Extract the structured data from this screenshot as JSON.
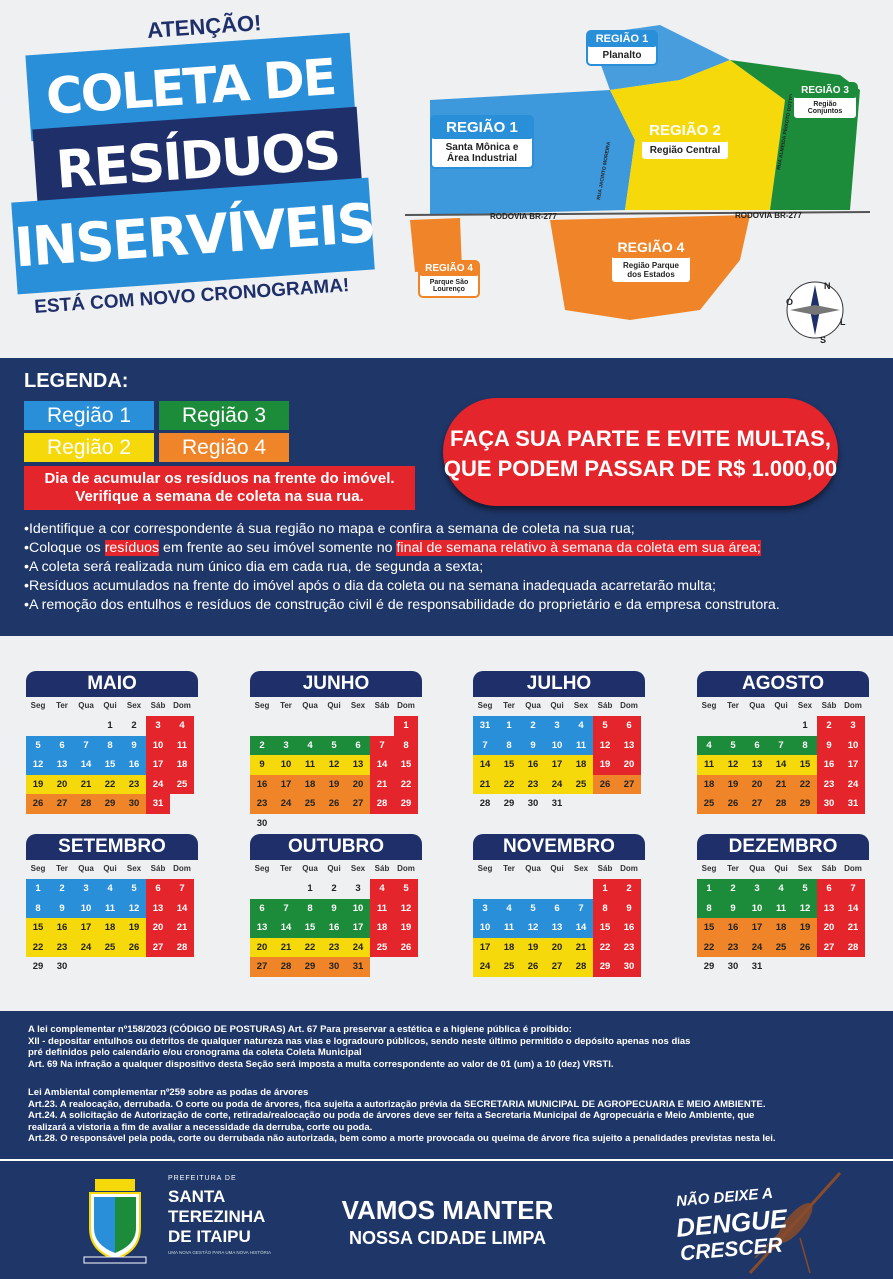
{
  "header": {
    "attention": "ATENÇÃO!",
    "title_line1": "COLETA DE",
    "title_line2": "RESÍDUOS",
    "title_line3": "INSERVÍVEIS",
    "subtitle": "ESTÁ COM NOVO CRONOGRAMA!"
  },
  "map": {
    "r1_top": {
      "title": "REGIÃO 1",
      "name": "Planalto"
    },
    "r3": {
      "title": "REGIÃO 3",
      "name": "Região Conjuntos"
    },
    "r1": {
      "title": "REGIÃO 1",
      "name": "Santa Mônica e Área Industrial"
    },
    "r2": {
      "title": "REGIÃO 2",
      "name": "Região Central"
    },
    "r4a": {
      "title": "REGIÃO 4",
      "name": "Região Parque dos Estados"
    },
    "r4b": {
      "title": "REGIÃO 4",
      "name": "Parque São Lourenço"
    },
    "road": "RODOVIA BR-277",
    "road2": "RODOVIA BR-277",
    "street1": "RUA JACINTO MOREIRA",
    "street2": "RUA ALMEIDA PEIXOTO DOTTO"
  },
  "legend": {
    "title": "LEGENDA:",
    "r1": "Região 1",
    "r2": "Região 2",
    "r3": "Região 3",
    "r4": "Região 4",
    "red_line1": "Dia de acumular os resíduos na frente do imóvel.",
    "red_line2": "Verifique a semana de coleta na sua rua."
  },
  "warning": {
    "line1": "FAÇA SUA PARTE E EVITE MULTAS,",
    "line2": "QUE PODEM PASSAR DE R$ 1.000,00"
  },
  "instructions": {
    "i1": "•Identifique a cor correspondente á sua região no mapa e confira a semana de coleta na sua rua;",
    "i2a": "•Coloque os ",
    "i2b": "resíduos",
    "i2c": " em frente ao seu imóvel somente no ",
    "i2d": "final de semana relativo à semana da coleta em sua área;",
    "i3": "•A coleta será realizada num único dia em cada rua, de segunda a sexta;",
    "i4": "•Resíduos acumulados na frente do imóvel após o dia da coleta ou na semana inadequada acarretarão multa;",
    "i5": "•A remoção dos entulhos e resíduos de construção civil é de responsabilidade do proprietário e da empresa construtora."
  },
  "weekdays": [
    "Seg",
    "Ter",
    "Qua",
    "Qui",
    "Sex",
    "Sáb",
    "Dom"
  ],
  "months": [
    {
      "name": "MAIO",
      "weeks": [
        [
          "",
          "",
          "",
          "1",
          "2",
          "3r",
          "4r"
        ],
        [
          "5b",
          "6b",
          "7b",
          "8b",
          "9b",
          "10r",
          "11r"
        ],
        [
          "12b",
          "13b",
          "14b",
          "15b",
          "16b",
          "17r",
          "18r"
        ],
        [
          "19y",
          "20y",
          "21y",
          "22y",
          "23y",
          "24r",
          "25r"
        ],
        [
          "26o",
          "27o",
          "28o",
          "29o",
          "30o",
          "31r",
          ""
        ]
      ]
    },
    {
      "name": "JUNHO",
      "weeks": [
        [
          "",
          "",
          "",
          "",
          "",
          "",
          "1r"
        ],
        [
          "2g",
          "3g",
          "4g",
          "5g",
          "6g",
          "7r",
          "8r"
        ],
        [
          "9y",
          "10y",
          "11y",
          "12y",
          "13y",
          "14r",
          "15r"
        ],
        [
          "16o",
          "17o",
          "18o",
          "19o",
          "20o",
          "21r",
          "22r"
        ],
        [
          "23o",
          "24o",
          "25o",
          "26o",
          "27o",
          "28r",
          "29r"
        ],
        [
          "30",
          "",
          "",
          "",
          "",
          "",
          ""
        ]
      ]
    },
    {
      "name": "JULHO",
      "weeks": [
        [
          "31b",
          "1b",
          "2b",
          "3b",
          "4b",
          "5r",
          "6r"
        ],
        [
          "7b",
          "8b",
          "9b",
          "10b",
          "11b",
          "12r",
          "13r"
        ],
        [
          "14y",
          "15y",
          "16y",
          "17y",
          "18y",
          "19r",
          "20r"
        ],
        [
          "21y",
          "22y",
          "23y",
          "24y",
          "25y",
          "26o",
          "27o"
        ],
        [
          "28",
          "29",
          "30",
          "31",
          "",
          "",
          ""
        ]
      ]
    },
    {
      "name": "AGOSTO",
      "weeks": [
        [
          "",
          "",
          "",
          "",
          "1",
          "2r",
          "3r"
        ],
        [
          "4g",
          "5g",
          "6g",
          "7g",
          "8g",
          "9r",
          "10r"
        ],
        [
          "11y",
          "12y",
          "13y",
          "14y",
          "15y",
          "16r",
          "17r"
        ],
        [
          "18o",
          "19o",
          "20o",
          "21o",
          "22o",
          "23r",
          "24r"
        ],
        [
          "25o",
          "26o",
          "27o",
          "28o",
          "29o",
          "30r",
          "31r"
        ]
      ]
    },
    {
      "name": "SETEMBRO",
      "weeks": [
        [
          "1b",
          "2b",
          "3b",
          "4b",
          "5b",
          "6r",
          "7r"
        ],
        [
          "8b",
          "9b",
          "10b",
          "11b",
          "12b",
          "13r",
          "14r"
        ],
        [
          "15y",
          "16y",
          "17y",
          "18y",
          "19y",
          "20r",
          "21r"
        ],
        [
          "22y",
          "23y",
          "24y",
          "25y",
          "26y",
          "27r",
          "28r"
        ],
        [
          "29",
          "30",
          "",
          "",
          "",
          "",
          ""
        ]
      ]
    },
    {
      "name": "OUTUBRO",
      "weeks": [
        [
          "",
          "",
          "1",
          "2",
          "3",
          "4r",
          "5r"
        ],
        [
          "6g",
          "7g",
          "8g",
          "9g",
          "10g",
          "11r",
          "12r"
        ],
        [
          "13g",
          "14g",
          "15g",
          "16g",
          "17g",
          "18r",
          "19r"
        ],
        [
          "20y",
          "21y",
          "22y",
          "23y",
          "24y",
          "25r",
          "26r"
        ],
        [
          "27o",
          "28o",
          "29o",
          "30o",
          "31o",
          "",
          ""
        ]
      ]
    },
    {
      "name": "NOVEMBRO",
      "weeks": [
        [
          "",
          "",
          "",
          "",
          "",
          "1r",
          "2r"
        ],
        [
          "3b",
          "4b",
          "5b",
          "6b",
          "7b",
          "8r",
          "9r"
        ],
        [
          "10b",
          "11b",
          "12b",
          "13b",
          "14b",
          "15r",
          "16r"
        ],
        [
          "17y",
          "18y",
          "19y",
          "20y",
          "21y",
          "22r",
          "23r"
        ],
        [
          "24y",
          "25y",
          "26y",
          "27y",
          "28y",
          "29r",
          "30r"
        ]
      ]
    },
    {
      "name": "DEZEMBRO",
      "weeks": [
        [
          "1g",
          "2g",
          "3g",
          "4g",
          "5g",
          "6r",
          "7r"
        ],
        [
          "8g",
          "9g",
          "10g",
          "11g",
          "12g",
          "13r",
          "14r"
        ],
        [
          "15o",
          "16o",
          "17o",
          "18o",
          "19o",
          "20r",
          "21r"
        ],
        [
          "22o",
          "23o",
          "24o",
          "25o",
          "26o",
          "27r",
          "28r"
        ],
        [
          "29",
          "30",
          "31",
          "",
          "",
          "",
          ""
        ]
      ]
    }
  ],
  "law": {
    "l1": "A lei complementar nº158/2023 (CÓDIGO DE POSTURAS) Art. 67 Para preservar a estética e a higiene pública é proibido:",
    "l2": "XII - depositar entulhos ou detritos de qualquer natureza nas vias e logradouro públicos, sendo neste último permitido o depósito apenas nos dias",
    "l3": "pré definidos pelo calendário e/ou cronograma da coleta Coleta Municipal",
    "l4": "Art. 69 Na infração a qualquer dispositivo desta Seção será imposta a multa correspondente ao valor de 01 (um) a 10 (dez) VRSTI.",
    "l5": "Lei Ambiental complementar nº259 sobre as podas de árvores",
    "l6": "Art.23. A realocação, derrubada. O corte ou poda de árvores, fica sujeita a autorização prévia da SECRETARIA MUNICIPAL DE AGROPECUARIA E MEIO AMBIENTE.",
    "l7": "Art.24. A solicitação de Autorização de corte, retirada/realocação ou poda de árvores deve ser feita a Secretaria Municipal de Agropecuária e Meio Ambiente, que",
    "l8": "realizará a vistoria a fim de avaliar a necessidade da derruba, corte ou poda.",
    "l9": "Art.28. O responsável pela poda, corte ou derrubada não autorizada, bem como a morte provocada ou queima de árvore fica sujeito a penalidades previstas nesta lei."
  },
  "footer": {
    "pref": "PREFEITURA DE",
    "city1": "SANTA",
    "city2": "TEREZINHA",
    "city3": "DE ITAIPU",
    "tagline": "UMA NOVA GESTÃO PARA UMA NOVA HISTÓRIA",
    "slogan1": "VAMOS MANTER",
    "slogan2": "NOSSA CIDADE LIMPA",
    "dengue1": "NÃO DEIXE A",
    "dengue2": "DENGUE",
    "dengue3": "CRESCER"
  },
  "compass": {
    "n": "N",
    "s": "S",
    "o": "O",
    "l": "L"
  },
  "colors": {
    "blue": "#2a8fd9",
    "yellow": "#f5d90a",
    "green": "#1d8c3a",
    "orange": "#ef8528",
    "red": "#e4262c",
    "navy": "#1f3668"
  }
}
